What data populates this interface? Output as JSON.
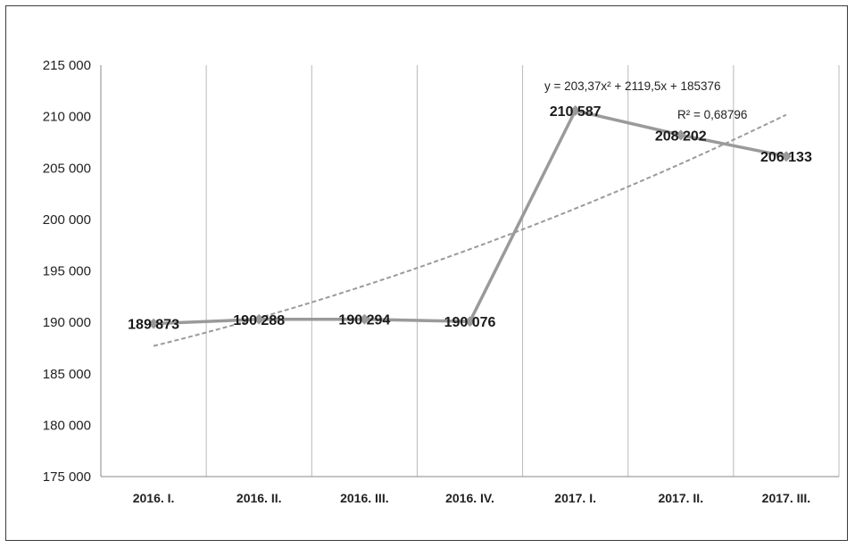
{
  "chart_data": {
    "type": "line",
    "categories": [
      "2016. I.",
      "2016. II.",
      "2016. III.",
      "2016. IV.",
      "2017. I.",
      "2017. II.",
      "2017. III."
    ],
    "series": [
      {
        "values": [
          189873,
          190288,
          190294,
          190076,
          210587,
          208202,
          206133
        ],
        "labels": [
          "189 873",
          "190 288",
          "190 294",
          "190 076",
          "210 587",
          "208 202",
          "206 133"
        ],
        "color": "#9a9a9a"
      }
    ],
    "trendline": {
      "type": "polynomial",
      "order": 2,
      "coefficients": [
        203.37,
        2119.5,
        185376
      ],
      "equation": "y = 203,37x² + 2119,5x + 185376",
      "r_squared": "R² = 0,68796",
      "color": "#9a9a9a",
      "dashed": true
    },
    "ylim": [
      175000,
      215000
    ],
    "yticks": [
      175000,
      180000,
      185000,
      190000,
      195000,
      200000,
      205000,
      210000,
      215000
    ],
    "ytick_labels": [
      "175 000",
      "180 000",
      "185 000",
      "190 000",
      "195 000",
      "200 000",
      "205 000",
      "210 000",
      "215 000"
    ],
    "grid": "vertical",
    "legend": "none",
    "title": "",
    "xlabel": "",
    "ylabel": ""
  }
}
